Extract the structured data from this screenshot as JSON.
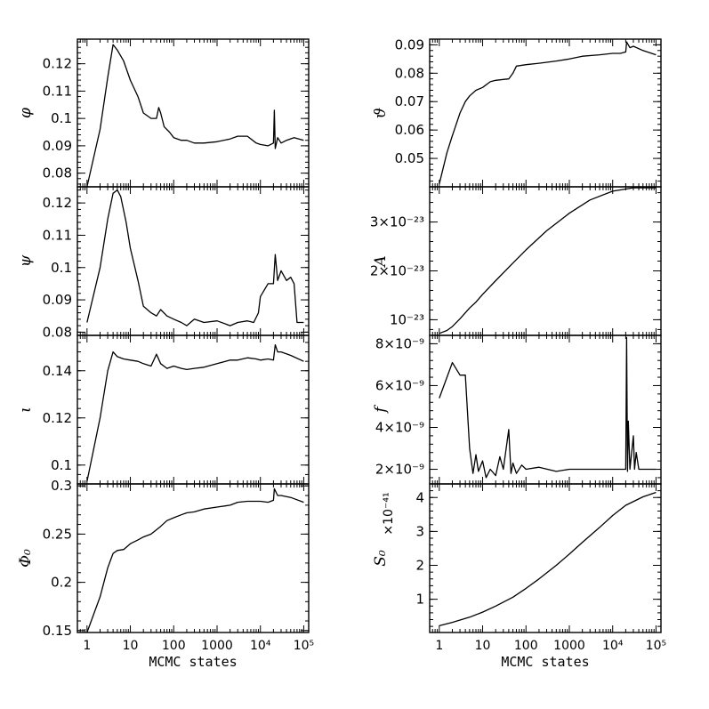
{
  "chart_data": [
    {
      "type": "line",
      "column": 0,
      "row": 0,
      "ylabel": "φ",
      "ylim": [
        0.075,
        0.129
      ],
      "yticks": [
        {
          "value": 0.08,
          "label": "0.08"
        },
        {
          "value": 0.09,
          "label": "0.09"
        },
        {
          "value": 0.1,
          "label": "0.1"
        },
        {
          "value": 0.11,
          "label": "0.11"
        },
        {
          "value": 0.12,
          "label": "0.12"
        }
      ],
      "series": [
        {
          "x": [
            1,
            2,
            3,
            4,
            5,
            7,
            10,
            15,
            20,
            30,
            40,
            45,
            50,
            60,
            80,
            100,
            150,
            200,
            300,
            500,
            1000,
            2000,
            3000,
            5000,
            8000,
            10000,
            15000,
            20000,
            21000,
            22000,
            25000,
            30000,
            40000,
            60000,
            100000
          ],
          "y": [
            0.075,
            0.096,
            0.115,
            0.127,
            0.125,
            0.121,
            0.114,
            0.108,
            0.102,
            0.1,
            0.1,
            0.104,
            0.102,
            0.097,
            0.095,
            0.093,
            0.092,
            0.092,
            0.091,
            0.091,
            0.0915,
            0.0925,
            0.0935,
            0.0935,
            0.091,
            0.0905,
            0.09,
            0.091,
            0.103,
            0.089,
            0.093,
            0.091,
            0.092,
            0.093,
            0.092
          ]
        }
      ]
    },
    {
      "type": "line",
      "column": 0,
      "row": 1,
      "ylabel": "ψ",
      "ylim": [
        0.079,
        0.125
      ],
      "yticks": [
        {
          "value": 0.08,
          "label": "0.08"
        },
        {
          "value": 0.09,
          "label": "0.09"
        },
        {
          "value": 0.1,
          "label": "0.1"
        },
        {
          "value": 0.11,
          "label": "0.11"
        },
        {
          "value": 0.12,
          "label": "0.12"
        }
      ],
      "series": [
        {
          "x": [
            1,
            2,
            3,
            4,
            5,
            6,
            8,
            10,
            15,
            20,
            30,
            40,
            50,
            70,
            100,
            150,
            200,
            300,
            500,
            1000,
            2000,
            3000,
            5000,
            7000,
            9000,
            10000,
            15000,
            20000,
            22000,
            25000,
            30000,
            40000,
            50000,
            60000,
            70000,
            100000
          ],
          "y": [
            0.083,
            0.1,
            0.115,
            0.123,
            0.124,
            0.122,
            0.114,
            0.106,
            0.096,
            0.088,
            0.086,
            0.085,
            0.087,
            0.085,
            0.084,
            0.083,
            0.082,
            0.084,
            0.083,
            0.0835,
            0.082,
            0.083,
            0.0835,
            0.083,
            0.086,
            0.091,
            0.095,
            0.095,
            0.104,
            0.096,
            0.099,
            0.096,
            0.097,
            0.095,
            0.083,
            0.083
          ]
        }
      ]
    },
    {
      "type": "line",
      "column": 0,
      "row": 2,
      "ylabel": "ι",
      "ylim": [
        0.092,
        0.155
      ],
      "yticks": [
        {
          "value": 0.1,
          "label": "0.1"
        },
        {
          "value": 0.12,
          "label": "0.12"
        },
        {
          "value": 0.14,
          "label": "0.14"
        }
      ],
      "series": [
        {
          "x": [
            1,
            2,
            3,
            4,
            5,
            7,
            10,
            15,
            20,
            30,
            40,
            50,
            70,
            100,
            150,
            200,
            300,
            500,
            1000,
            2000,
            3000,
            5000,
            8000,
            10000,
            15000,
            20000,
            22000,
            25000,
            30000,
            50000,
            100000
          ],
          "y": [
            0.093,
            0.12,
            0.14,
            0.148,
            0.146,
            0.145,
            0.1445,
            0.144,
            0.143,
            0.142,
            0.147,
            0.143,
            0.141,
            0.142,
            0.141,
            0.1405,
            0.141,
            0.1415,
            0.143,
            0.1445,
            0.1445,
            0.1455,
            0.145,
            0.1445,
            0.145,
            0.1445,
            0.151,
            0.148,
            0.148,
            0.1465,
            0.144
          ]
        }
      ]
    },
    {
      "type": "line",
      "column": 0,
      "row": 3,
      "ylabel": "Φ₀",
      "xlabel": "MCMC states",
      "ylim": [
        0.148,
        0.302
      ],
      "yticks": [
        {
          "value": 0.15,
          "label": "0.15"
        },
        {
          "value": 0.2,
          "label": "0.2"
        },
        {
          "value": 0.25,
          "label": "0.25"
        },
        {
          "value": 0.3,
          "label": "0.3"
        }
      ],
      "xticks": [
        {
          "value": 1,
          "label": "1"
        },
        {
          "value": 10,
          "label": "10"
        },
        {
          "value": 100,
          "label": "100"
        },
        {
          "value": 1000,
          "label": "1000"
        },
        {
          "value": 10000,
          "label": "10⁴"
        },
        {
          "value": 100000,
          "label": "10⁵"
        }
      ],
      "series": [
        {
          "x": [
            1,
            2,
            3,
            4,
            5,
            7,
            10,
            15,
            20,
            30,
            50,
            70,
            100,
            150,
            200,
            300,
            500,
            1000,
            2000,
            3000,
            5000,
            8000,
            10000,
            15000,
            20000,
            21000,
            25000,
            30000,
            50000,
            100000
          ],
          "y": [
            0.148,
            0.185,
            0.215,
            0.23,
            0.233,
            0.234,
            0.24,
            0.244,
            0.247,
            0.25,
            0.258,
            0.264,
            0.267,
            0.27,
            0.272,
            0.273,
            0.276,
            0.278,
            0.28,
            0.283,
            0.284,
            0.284,
            0.284,
            0.283,
            0.285,
            0.297,
            0.29,
            0.29,
            0.288,
            0.283
          ]
        }
      ]
    },
    {
      "type": "line",
      "column": 1,
      "row": 0,
      "ylabel": "ϑ",
      "ylim": [
        0.04,
        0.092
      ],
      "yticks": [
        {
          "value": 0.05,
          "label": "0.05"
        },
        {
          "value": 0.06,
          "label": "0.06"
        },
        {
          "value": 0.07,
          "label": "0.07"
        },
        {
          "value": 0.08,
          "label": "0.08"
        },
        {
          "value": 0.09,
          "label": "0.09"
        }
      ],
      "series": [
        {
          "x": [
            1,
            1.5,
            2,
            3,
            4,
            5,
            7,
            10,
            15,
            20,
            30,
            40,
            50,
            60,
            100,
            200,
            500,
            1000,
            2000,
            5000,
            10000,
            15000,
            20000,
            21000,
            25000,
            30000,
            50000,
            100000
          ],
          "y": [
            0.041,
            0.052,
            0.058,
            0.066,
            0.07,
            0.072,
            0.074,
            0.075,
            0.077,
            0.0775,
            0.0778,
            0.078,
            0.08,
            0.0825,
            0.083,
            0.0835,
            0.0843,
            0.085,
            0.086,
            0.0865,
            0.087,
            0.087,
            0.0875,
            0.091,
            0.089,
            0.0895,
            0.088,
            0.0865
          ]
        }
      ]
    },
    {
      "type": "line",
      "column": 1,
      "row": 1,
      "ylabel": "A",
      "ylim": [
        0.68,
        3.72
      ],
      "yticks": [
        {
          "value": 1,
          "label": "10⁻²³"
        },
        {
          "value": 2,
          "label": "2×10⁻²³"
        },
        {
          "value": 3,
          "label": "3×10⁻²³"
        }
      ],
      "series": [
        {
          "x": [
            1,
            1.5,
            2,
            3,
            5,
            7,
            10,
            20,
            50,
            100,
            300,
            1000,
            3000,
            10000,
            30000,
            100000
          ],
          "y": [
            0.72,
            0.78,
            0.86,
            1.02,
            1.24,
            1.36,
            1.52,
            1.8,
            2.16,
            2.43,
            2.82,
            3.18,
            3.45,
            3.63,
            3.7,
            3.7
          ]
        }
      ]
    },
    {
      "type": "line",
      "column": 1,
      "row": 2,
      "ylabel": "f",
      "ylim": [
        1.3,
        8.4
      ],
      "yticks": [
        {
          "value": 2,
          "label": "2×10⁻⁹"
        },
        {
          "value": 4,
          "label": "4×10⁻⁹"
        },
        {
          "value": 6,
          "label": "6×10⁻⁹"
        },
        {
          "value": 8,
          "label": "8×10⁻⁹"
        }
      ],
      "series": [
        {
          "x": [
            1,
            2,
            3,
            4,
            5,
            6,
            7,
            8,
            10,
            12,
            15,
            20,
            25,
            30,
            40,
            45,
            50,
            60,
            80,
            100,
            200,
            500,
            1000,
            3000,
            10000,
            20000,
            21000,
            22000,
            23000,
            25000,
            30000,
            32000,
            35000,
            40000,
            50000,
            100000
          ],
          "y": [
            5.4,
            7.1,
            6.5,
            6.5,
            3.0,
            1.8,
            2.7,
            1.9,
            2.4,
            1.6,
            2.0,
            1.7,
            2.6,
            2.0,
            3.9,
            1.8,
            2.3,
            1.8,
            2.2,
            2.0,
            2.1,
            1.9,
            2.0,
            2.0,
            2.0,
            2.0,
            8.3,
            1.9,
            4.3,
            2.0,
            3.6,
            2.0,
            2.8,
            2.0,
            2.0,
            2.0
          ]
        }
      ]
    },
    {
      "type": "line",
      "column": 1,
      "row": 3,
      "ylabel": "S₀",
      "ylabel_factor": "×10⁻⁴¹",
      "xlabel": "MCMC states",
      "ylim": [
        0.02,
        4.4
      ],
      "yticks": [
        {
          "value": 1,
          "label": "1"
        },
        {
          "value": 2,
          "label": "2"
        },
        {
          "value": 3,
          "label": "3"
        },
        {
          "value": 4,
          "label": "4"
        }
      ],
      "xticks": [
        {
          "value": 1,
          "label": "1"
        },
        {
          "value": 10,
          "label": "10"
        },
        {
          "value": 100,
          "label": "100"
        },
        {
          "value": 1000,
          "label": "1000"
        },
        {
          "value": 10000,
          "label": "10⁴"
        },
        {
          "value": 100000,
          "label": "10⁵"
        }
      ],
      "series": [
        {
          "x": [
            1,
            2,
            5,
            10,
            20,
            50,
            100,
            200,
            500,
            1000,
            2000,
            5000,
            10000,
            20000,
            50000,
            100000
          ],
          "y": [
            0.22,
            0.32,
            0.47,
            0.62,
            0.8,
            1.06,
            1.32,
            1.6,
            2.0,
            2.33,
            2.68,
            3.12,
            3.47,
            3.77,
            4.02,
            4.15
          ]
        }
      ]
    }
  ]
}
